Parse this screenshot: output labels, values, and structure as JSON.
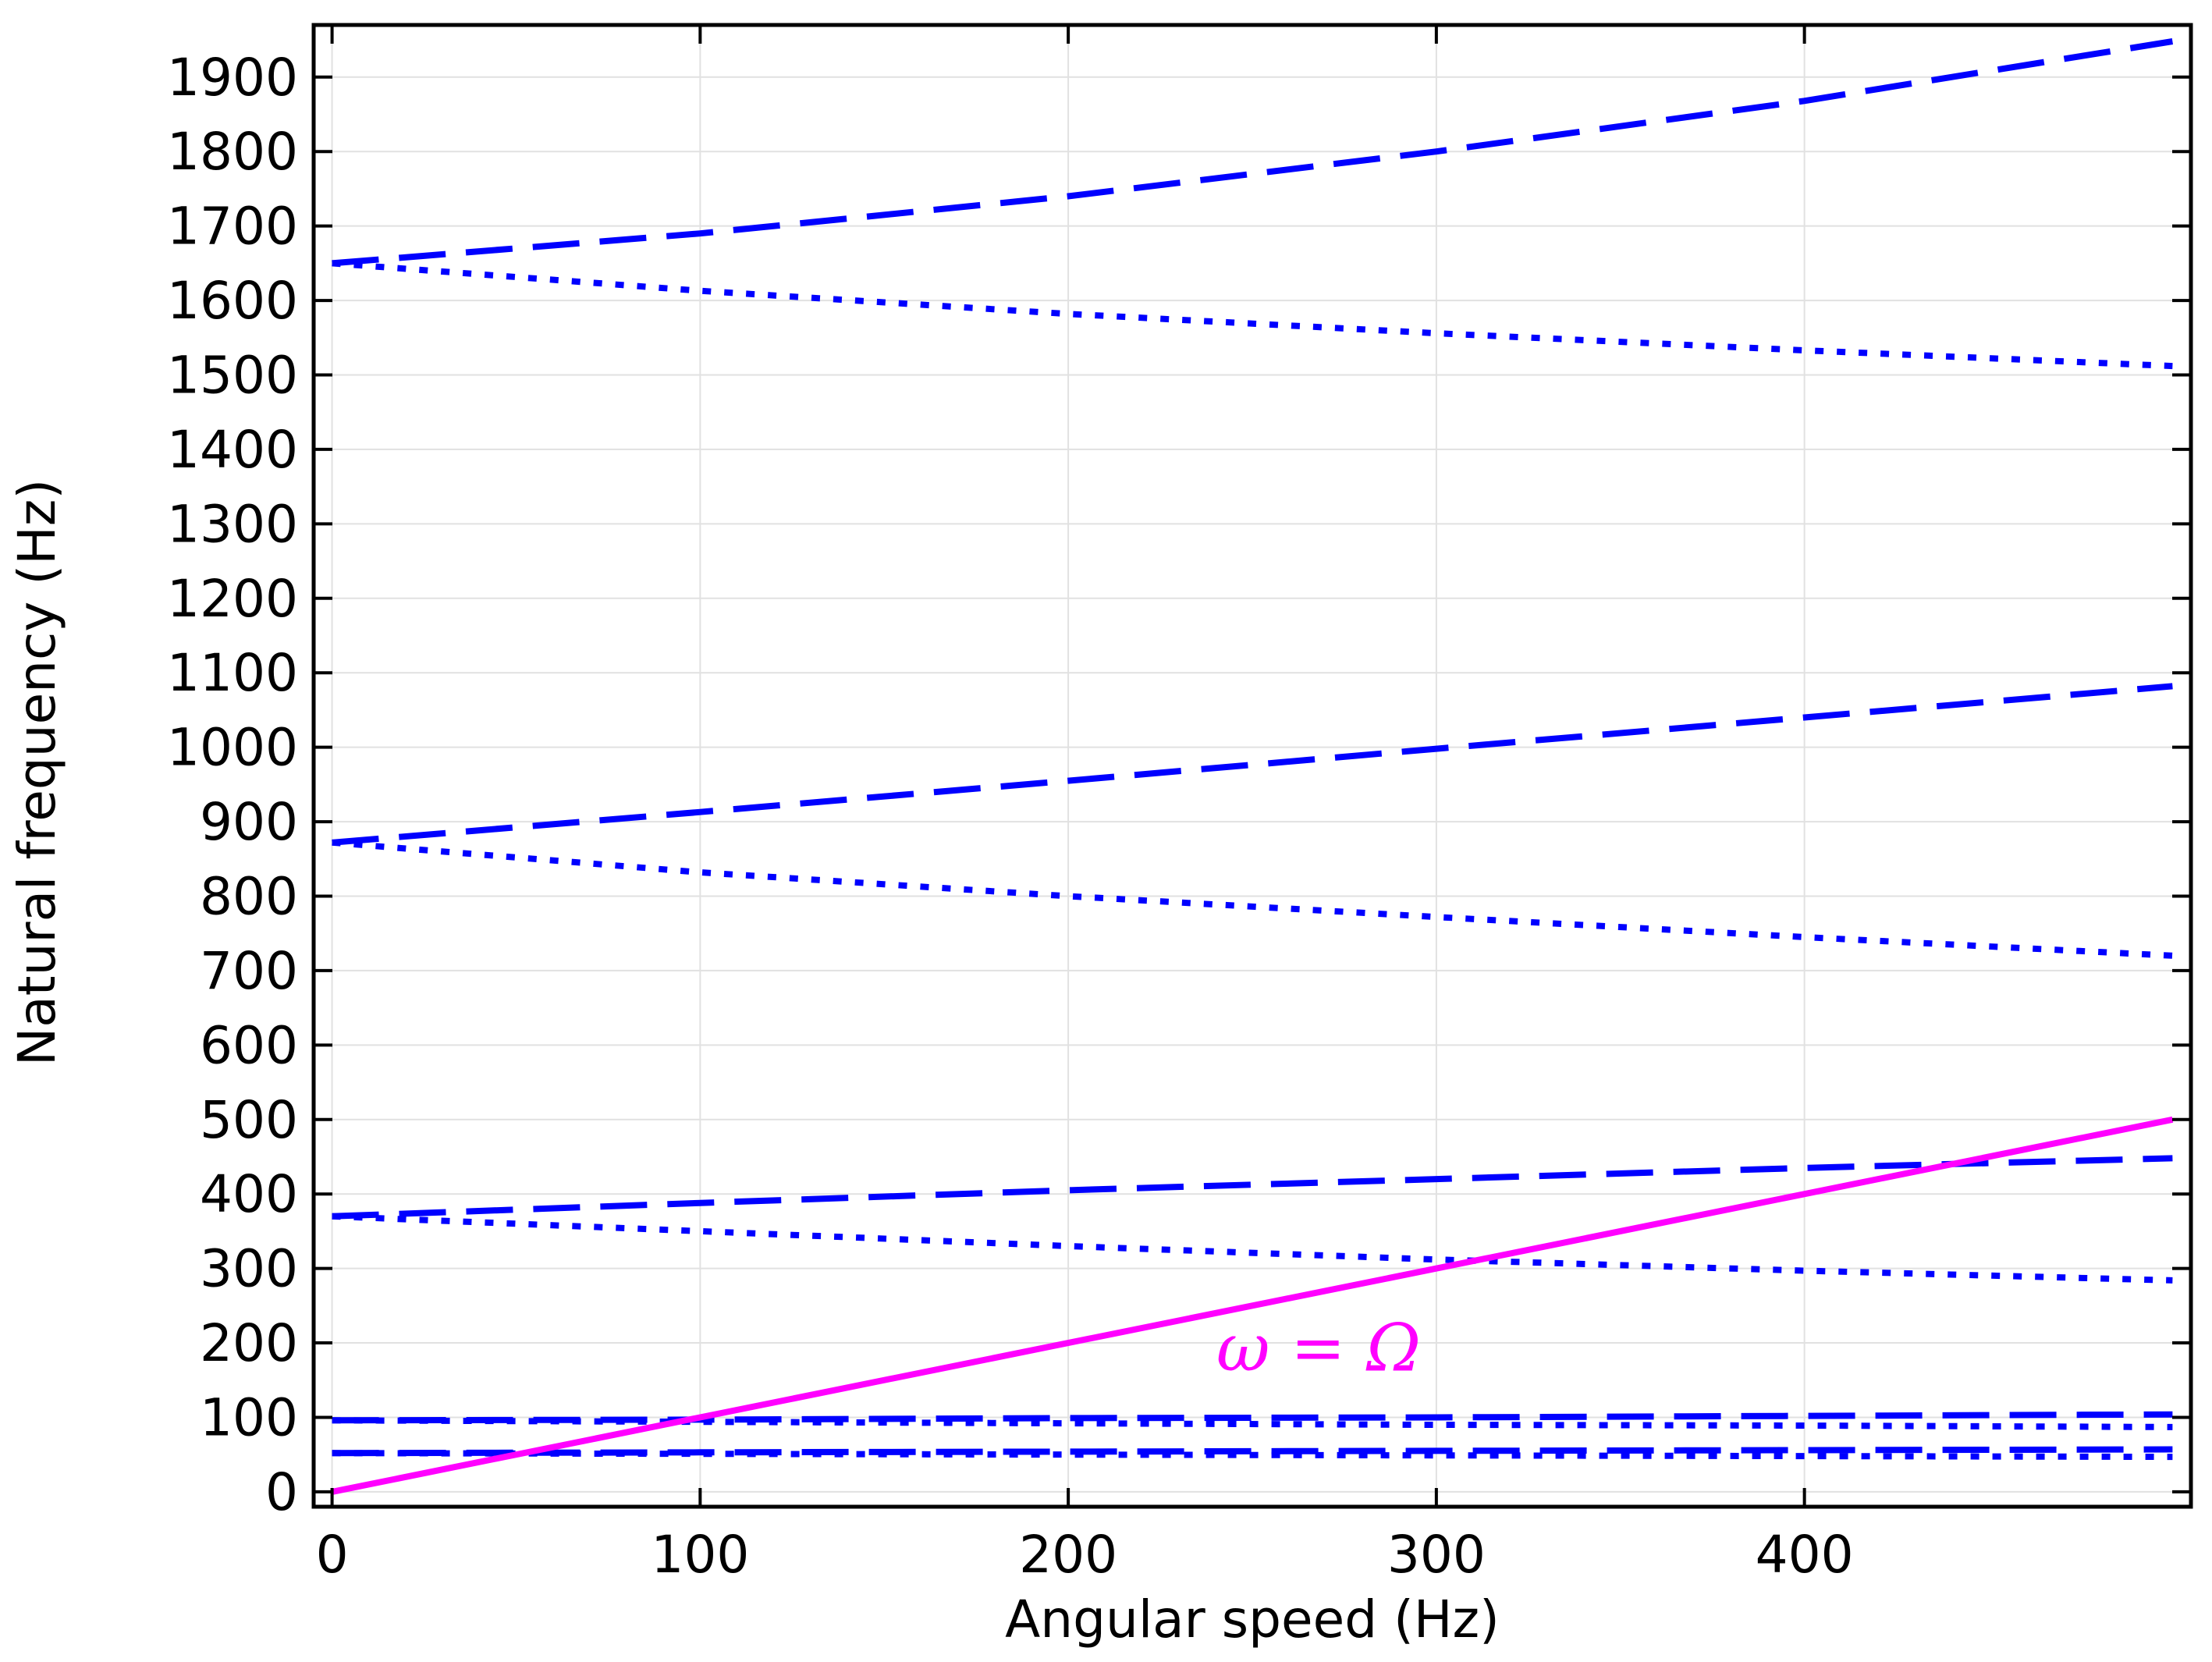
{
  "chart_data": {
    "type": "line",
    "title": "",
    "xlabel": "Angular speed (Hz)",
    "ylabel": "Natural frequency (Hz)",
    "xlim": [
      -5,
      505
    ],
    "ylim": [
      -20,
      1970
    ],
    "x_ticks": [
      0,
      100,
      200,
      300,
      400
    ],
    "y_ticks": [
      0,
      100,
      200,
      300,
      400,
      500,
      600,
      700,
      800,
      900,
      1000,
      1100,
      1200,
      1300,
      1400,
      1500,
      1600,
      1700,
      1800,
      1900
    ],
    "x_tick_labels": [
      "0",
      "100",
      "200",
      "300",
      "400"
    ],
    "y_tick_labels": [
      "0",
      "100",
      "200",
      "300",
      "400",
      "500",
      "600",
      "700",
      "800",
      "900",
      "1000",
      "1100",
      "1200",
      "1300",
      "1400",
      "1500",
      "1600",
      "1700",
      "1800",
      "1900"
    ],
    "grid": true,
    "legend": "none",
    "series": [
      {
        "style": "dashed",
        "color": "#0000ff",
        "x": [
          0,
          100,
          200,
          300,
          400,
          500
        ],
        "y": [
          1650,
          1690,
          1740,
          1800,
          1868,
          1948
        ]
      },
      {
        "style": "dotted",
        "color": "#0000ff",
        "x": [
          0,
          100,
          200,
          300,
          400,
          500
        ],
        "y": [
          1650,
          1613,
          1582,
          1556,
          1533,
          1512
        ]
      },
      {
        "style": "dashed",
        "color": "#0000ff",
        "x": [
          0,
          100,
          200,
          300,
          400,
          500
        ],
        "y": [
          872,
          913,
          955,
          998,
          1040,
          1082
        ]
      },
      {
        "style": "dotted",
        "color": "#0000ff",
        "x": [
          0,
          100,
          200,
          300,
          400,
          500
        ],
        "y": [
          872,
          832,
          800,
          772,
          745,
          720
        ]
      },
      {
        "style": "dashed",
        "color": "#0000ff",
        "x": [
          0,
          100,
          200,
          300,
          400,
          500
        ],
        "y": [
          370,
          388,
          405,
          420,
          435,
          448
        ]
      },
      {
        "style": "dotted",
        "color": "#0000ff",
        "x": [
          0,
          100,
          200,
          300,
          400,
          500
        ],
        "y": [
          370,
          350,
          330,
          312,
          297,
          284
        ]
      },
      {
        "style": "dashed",
        "color": "#0000ff",
        "x": [
          0,
          100,
          200,
          300,
          400,
          500
        ],
        "y": [
          96,
          97,
          99,
          100,
          102,
          104
        ]
      },
      {
        "style": "dotted",
        "color": "#0000ff",
        "x": [
          0,
          100,
          200,
          300,
          400,
          500
        ],
        "y": [
          96,
          94,
          92,
          90,
          89,
          87
        ]
      },
      {
        "style": "dashed",
        "color": "#0000ff",
        "x": [
          0,
          100,
          200,
          300,
          400,
          500
        ],
        "y": [
          52,
          53,
          54,
          55,
          56,
          57
        ]
      },
      {
        "style": "dotted",
        "color": "#0000ff",
        "x": [
          0,
          100,
          200,
          300,
          400,
          500
        ],
        "y": [
          52,
          51,
          50,
          49,
          48,
          47
        ]
      },
      {
        "style": "solid",
        "color": "#ff00ff",
        "x": [
          0,
          500
        ],
        "y": [
          0,
          500
        ]
      }
    ],
    "annotations": [
      {
        "text": "ω = Ω",
        "x": 300,
        "y": 205,
        "color": "#ff00ff"
      }
    ]
  }
}
